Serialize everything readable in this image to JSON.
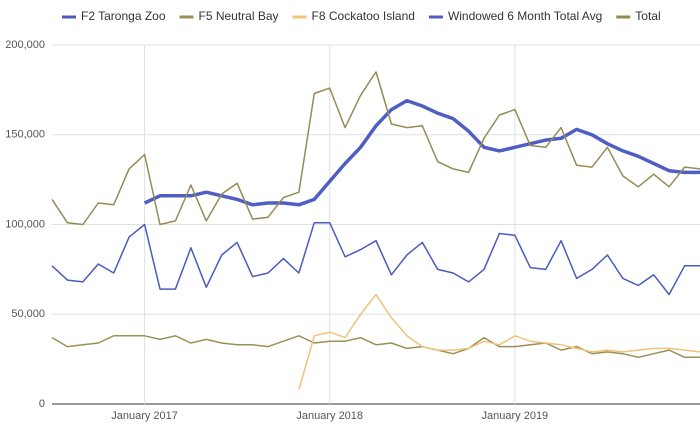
{
  "chart_data": {
    "type": "line",
    "x": [
      "2016-07",
      "2016-08",
      "2016-09",
      "2016-10",
      "2016-11",
      "2016-12",
      "2017-01",
      "2017-02",
      "2017-03",
      "2017-04",
      "2017-05",
      "2017-06",
      "2017-07",
      "2017-08",
      "2017-09",
      "2017-10",
      "2017-11",
      "2017-12",
      "2018-01",
      "2018-02",
      "2018-03",
      "2018-04",
      "2018-05",
      "2018-06",
      "2018-07",
      "2018-08",
      "2018-09",
      "2018-10",
      "2018-11",
      "2018-12",
      "2019-01",
      "2019-02",
      "2019-03",
      "2019-04",
      "2019-05",
      "2019-06",
      "2019-07",
      "2019-08",
      "2019-09",
      "2019-10",
      "2019-11",
      "2019-12",
      "2020-01"
    ],
    "series": [
      {
        "name": "F2 Taronga Zoo",
        "color": "#4a5bbd",
        "width": 1.5,
        "values": [
          77000,
          69000,
          68000,
          78000,
          73000,
          93000,
          100000,
          64000,
          64000,
          87000,
          65000,
          83000,
          90000,
          71000,
          73000,
          81000,
          73000,
          101000,
          101000,
          82000,
          86000,
          91000,
          72000,
          83000,
          90000,
          75000,
          73000,
          68000,
          75000,
          95000,
          94000,
          76000,
          75000,
          91000,
          70000,
          75000,
          83000,
          70000,
          66000,
          72000,
          61000,
          77000,
          77000
        ]
      },
      {
        "name": "F5 Neutral Bay",
        "color": "#9b9155",
        "width": 1.5,
        "values": [
          37000,
          32000,
          33000,
          34000,
          38000,
          38000,
          38000,
          36000,
          38000,
          34000,
          36000,
          34000,
          33000,
          33000,
          32000,
          35000,
          38000,
          34000,
          35000,
          35000,
          37000,
          33000,
          34000,
          31000,
          32000,
          30000,
          28000,
          31000,
          37000,
          32000,
          32000,
          33000,
          34000,
          30000,
          32000,
          28000,
          29000,
          28000,
          26000,
          28000,
          30000,
          26000,
          26000
        ]
      },
      {
        "name": "F8 Cockatoo Island",
        "color": "#f0c27a",
        "width": 1.5,
        "values": [
          null,
          null,
          null,
          null,
          null,
          null,
          null,
          null,
          null,
          null,
          null,
          null,
          null,
          null,
          null,
          null,
          8000,
          38000,
          40000,
          37000,
          50000,
          61000,
          48000,
          38000,
          32000,
          30000,
          30000,
          31000,
          35000,
          33000,
          38000,
          35000,
          34000,
          33000,
          31000,
          29000,
          30000,
          29000,
          30000,
          31000,
          31000,
          30000,
          29000
        ]
      },
      {
        "name": "Windowed 6 Month Total Avg",
        "color": "#4f5ec4",
        "width": 3.5,
        "values": [
          null,
          null,
          null,
          null,
          null,
          null,
          112000,
          116000,
          116000,
          116000,
          118000,
          116000,
          114000,
          111000,
          112000,
          112000,
          111000,
          114000,
          124000,
          134000,
          143000,
          155000,
          164000,
          169000,
          166000,
          162000,
          159000,
          152000,
          143000,
          141000,
          143000,
          145000,
          147000,
          148000,
          153000,
          150000,
          145000,
          141000,
          138000,
          134000,
          130000,
          129000,
          129000
        ]
      },
      {
        "name": "Total",
        "color": "#958b55",
        "width": 1.5,
        "values": [
          114000,
          101000,
          100000,
          112000,
          111000,
          131000,
          139000,
          100000,
          102000,
          122000,
          102000,
          117000,
          123000,
          103000,
          104000,
          115000,
          118000,
          173000,
          176000,
          154000,
          172000,
          185000,
          156000,
          154000,
          155000,
          135000,
          131000,
          129000,
          148000,
          161000,
          164000,
          144000,
          143000,
          154000,
          133000,
          132000,
          143000,
          127000,
          121000,
          128000,
          121000,
          132000,
          131000
        ]
      }
    ],
    "xlim": [
      "2016-07",
      "2020-01"
    ],
    "xticks": [
      {
        "value": "2017-01",
        "label": "January 2017"
      },
      {
        "value": "2018-01",
        "label": "January 2018"
      },
      {
        "value": "2019-01",
        "label": "January 2019"
      }
    ],
    "ylim": [
      0,
      200000
    ],
    "yticks": [
      0,
      {
        "value": 50000,
        "label": "50,000"
      },
      {
        "value": 100000,
        "label": "100,000"
      },
      {
        "value": 150000,
        "label": "150,000"
      },
      {
        "value": 200000,
        "label": "200,000"
      }
    ],
    "grid": true,
    "legend": "top"
  }
}
